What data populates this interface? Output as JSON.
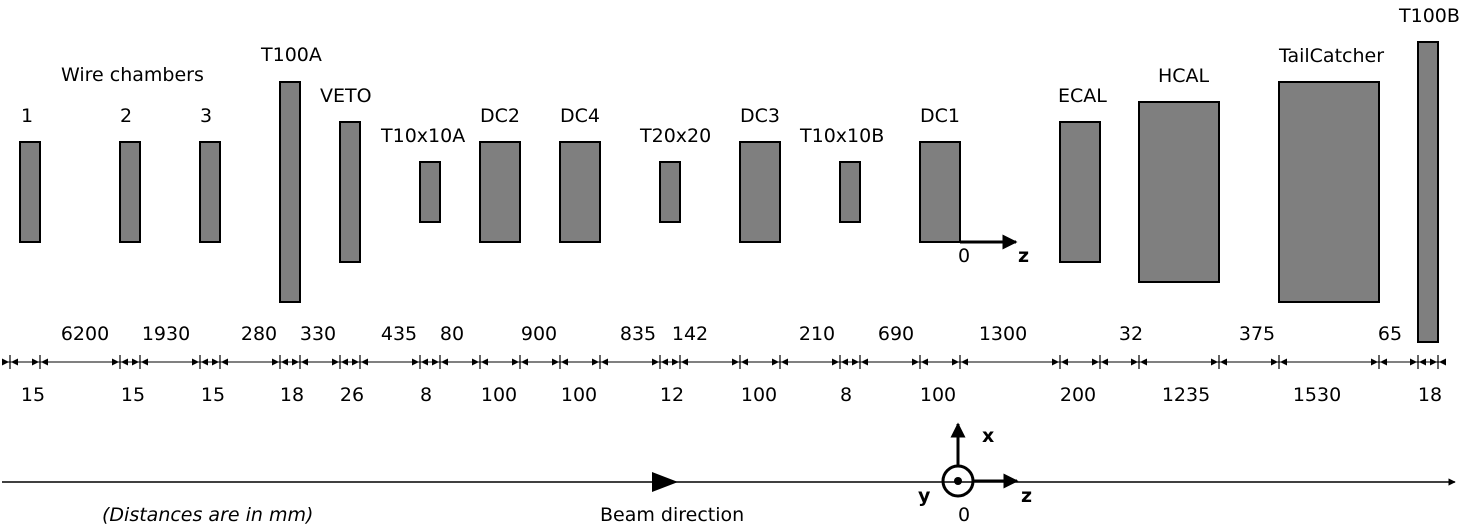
{
  "colors": {
    "detector_fill": "#7f7f7f",
    "stroke": "#000000",
    "background": "#ffffff"
  },
  "labels": {
    "wire_chambers": "Wire chambers",
    "wc1": "1",
    "wc2": "2",
    "wc3": "3",
    "t100a": "T100A",
    "veto": "VETO",
    "t10x10a": "T10x10A",
    "dc2": "DC2",
    "dc4": "DC4",
    "t20x20": "T20x20",
    "dc3": "DC3",
    "t10x10b": "T10x10B",
    "dc1": "DC1",
    "ecal": "ECAL",
    "hcal": "HCAL",
    "tailcatcher": "TailCatcher",
    "t100b": "T100B"
  },
  "gaps": [
    "6200",
    "1930",
    "280",
    "330",
    "435",
    "80",
    "900",
    "835",
    "142",
    "210",
    "690",
    "1300",
    "32",
    "375",
    "65"
  ],
  "thicknesses": [
    "15",
    "15",
    "15",
    "18",
    "26",
    "8",
    "100",
    "100",
    "12",
    "100",
    "8",
    "100",
    "200",
    "1235",
    "1530",
    "18"
  ],
  "axes": {
    "upper_origin": "0",
    "upper_z": "z",
    "lower_x": "x",
    "lower_y": "y",
    "lower_z": "z",
    "lower_origin": "0"
  },
  "beam_direction": "Beam direction",
  "note": "(Distances are in mm)"
}
